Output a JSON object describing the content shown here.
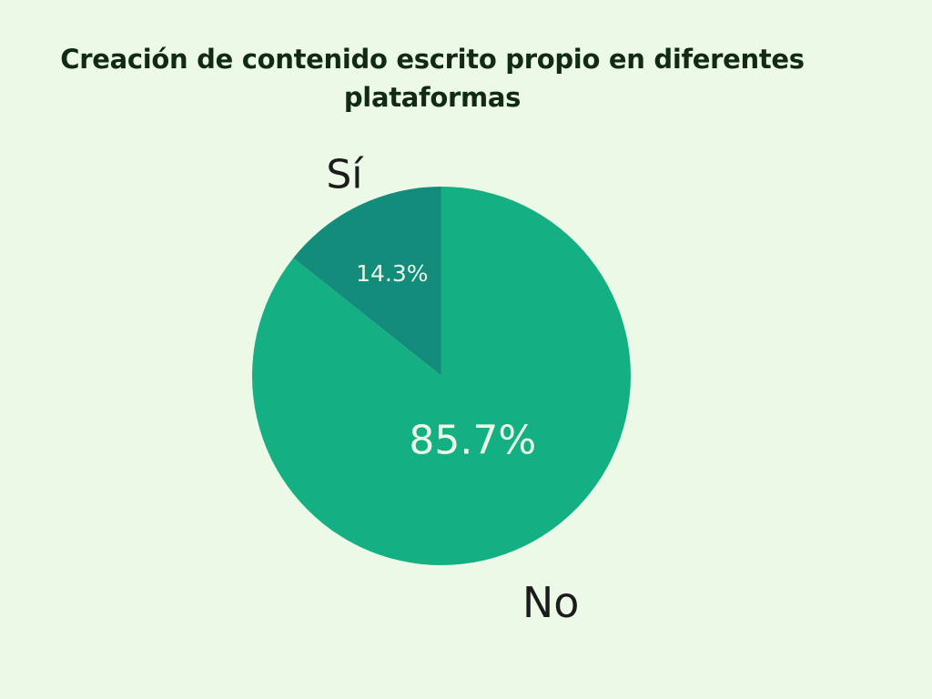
{
  "chart_data": {
    "type": "pie",
    "title": "Creación de contenido escrito propio en diferentes plataformas",
    "slices": [
      {
        "label": "Sí",
        "value": 14.3,
        "display": "14.3%",
        "color": "#138c7c"
      },
      {
        "label": "No",
        "value": 85.7,
        "display": "85.7%",
        "color": "#14b083"
      }
    ],
    "start_angle_deg": 0,
    "direction": "counterclockwise",
    "label_color": "#ebf9e6",
    "category_label_color": "#1b1b1b"
  }
}
